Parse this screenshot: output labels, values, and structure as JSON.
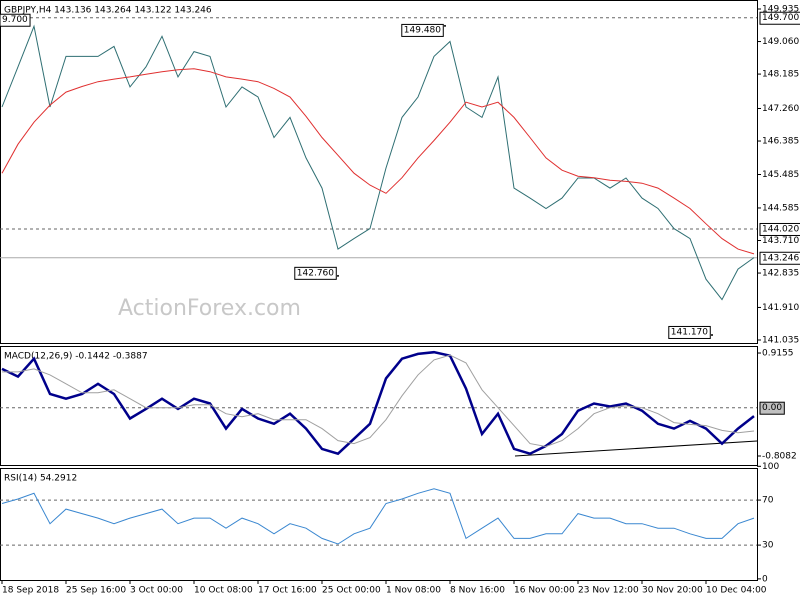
{
  "chart_data": [
    {
      "type": "line",
      "title": "GBPJPY,H4  143.136 143.264 143.122 143.246",
      "watermark": "ActionForex.com",
      "xlim": [
        -1,
        377.5
      ],
      "x": [
        0,
        8,
        16,
        24,
        32,
        40,
        48,
        56,
        64,
        72,
        80,
        88,
        96,
        104,
        112,
        120,
        128,
        136,
        144,
        152,
        160,
        168,
        176,
        184,
        192,
        200,
        208,
        216,
        224,
        232,
        240,
        248,
        256,
        264,
        272,
        280,
        288,
        296,
        304,
        312,
        320,
        328,
        336,
        344,
        352,
        360,
        368,
        376
      ],
      "ylim": [
        140.954,
        150.177
      ],
      "yticks": [
        149.935,
        {
          "value": 149.06,
          "label": "149.060"
        },
        148.185,
        {
          "value": 147.26,
          "label": "147.260"
        },
        146.385,
        145.485,
        144.585,
        {
          "value": 143.71,
          "label": "143.710"
        },
        142.835,
        {
          "value": 141.91,
          "label": "141.910"
        },
        141.035
      ],
      "levels": [
        {
          "value": 149.7,
          "label": "149.700",
          "left_label": "9.700"
        },
        {
          "value": 144.02,
          "label": "144.020"
        }
      ],
      "current": {
        "value": 143.246,
        "label": "143.246"
      },
      "annotations": [
        {
          "x": 221.5,
          "value": 149.48,
          "label": "149.480"
        },
        {
          "x": 168,
          "value": 142.76,
          "label": "142.760"
        },
        {
          "x": 355,
          "value": 141.17,
          "label": "141.170"
        }
      ],
      "series": [
        {
          "color": "#2f6f73",
          "values": [
            147.3,
            148.38,
            149.47,
            147.3,
            148.66,
            148.66,
            148.66,
            148.93,
            147.84,
            148.38,
            149.2,
            148.11,
            148.79,
            148.66,
            147.3,
            147.84,
            147.57,
            146.48,
            147.02,
            145.93,
            145.12,
            143.48,
            143.76,
            144.03,
            145.66,
            147.02,
            147.57,
            148.66,
            149.06,
            147.3,
            147.02,
            148.11,
            145.12,
            144.85,
            144.57,
            144.85,
            145.39,
            145.39,
            145.12,
            145.39,
            144.85,
            144.57,
            144.03,
            143.76,
            142.67,
            142.12,
            142.94,
            143.25
          ]
        },
        {
          "color": "#e03030",
          "values": [
            145.52,
            146.3,
            146.89,
            147.35,
            147.7,
            147.85,
            147.98,
            148.05,
            148.11,
            148.18,
            148.25,
            148.3,
            148.33,
            148.25,
            148.11,
            148.05,
            147.98,
            147.8,
            147.57,
            147.05,
            146.48,
            146.0,
            145.52,
            145.2,
            144.98,
            145.4,
            145.93,
            146.4,
            146.89,
            147.43,
            147.3,
            147.43,
            147.02,
            146.48,
            145.93,
            145.6,
            145.44,
            145.4,
            145.33,
            145.3,
            145.25,
            145.12,
            144.85,
            144.57,
            144.16,
            143.76,
            143.48,
            143.35
          ]
        }
      ]
    },
    {
      "type": "line",
      "title": "MACD(12,26,9) -0.1442 -0.3887",
      "xlim": [
        -1,
        377.5
      ],
      "x": [
        0,
        8,
        16,
        24,
        32,
        40,
        48,
        56,
        64,
        72,
        80,
        88,
        96,
        104,
        112,
        120,
        128,
        136,
        144,
        152,
        160,
        168,
        176,
        184,
        192,
        200,
        208,
        216,
        224,
        232,
        240,
        248,
        256,
        264,
        272,
        280,
        288,
        296,
        304,
        312,
        320,
        328,
        336,
        344,
        352,
        360,
        368,
        376
      ],
      "ylim": [
        -0.959,
        1.033
      ],
      "yticks": [
        0.9155,
        -0.8082
      ],
      "levels": [
        {
          "value": 0,
          "label": "0.00"
        }
      ],
      "series": [
        {
          "color": "#00008b",
          "values": [
            0.65,
            0.52,
            0.82,
            0.23,
            0.15,
            0.23,
            0.4,
            0.23,
            -0.18,
            -0.02,
            0.15,
            -0.02,
            0.15,
            0.07,
            -0.35,
            -0.02,
            -0.18,
            -0.27,
            -0.1,
            -0.35,
            -0.69,
            -0.77,
            -0.52,
            -0.27,
            0.49,
            0.82,
            0.9,
            0.93,
            0.87,
            0.32,
            -0.44,
            -0.1,
            -0.69,
            -0.77,
            -0.64,
            -0.44,
            -0.05,
            0.07,
            0.02,
            0.07,
            -0.05,
            -0.27,
            -0.35,
            -0.22,
            -0.35,
            -0.6,
            -0.35,
            -0.14
          ]
        },
        {
          "color": "#a0a0a0",
          "values": [
            0.6,
            0.6,
            0.65,
            0.55,
            0.4,
            0.25,
            0.25,
            0.3,
            0.15,
            0.0,
            0.0,
            0.0,
            0.05,
            0.05,
            -0.1,
            -0.15,
            -0.1,
            -0.2,
            -0.2,
            -0.2,
            -0.35,
            -0.55,
            -0.6,
            -0.5,
            -0.2,
            0.2,
            0.55,
            0.8,
            0.88,
            0.75,
            0.3,
            0.0,
            -0.3,
            -0.6,
            -0.65,
            -0.55,
            -0.35,
            -0.1,
            0.0,
            0.03,
            0.0,
            -0.1,
            -0.25,
            -0.28,
            -0.3,
            -0.38,
            -0.42,
            -0.39
          ]
        }
      ]
    },
    {
      "type": "line",
      "title": "RSI(14) 54.2912",
      "xlim": [
        -1,
        377.5
      ],
      "x": [
        0,
        8,
        16,
        24,
        32,
        40,
        48,
        56,
        64,
        72,
        80,
        88,
        96,
        104,
        112,
        120,
        128,
        136,
        144,
        152,
        160,
        168,
        176,
        184,
        192,
        200,
        208,
        216,
        224,
        232,
        240,
        248,
        256,
        264,
        272,
        280,
        288,
        296,
        304,
        312,
        320,
        328,
        336,
        344,
        352,
        360,
        368,
        376
      ],
      "ylim": [
        -1,
        98.5
      ],
      "yticks": [
        100,
        70,
        30,
        0
      ],
      "levels": [
        70,
        30
      ],
      "xticks": [
        {
          "value": 0,
          "label": "18 Sep 2018"
        },
        {
          "value": 32,
          "label": "25 Sep 16:00"
        },
        {
          "value": 64,
          "label": "3 Oct 00:00"
        },
        {
          "value": 96,
          "label": "10 Oct 08:00"
        },
        {
          "value": 128,
          "label": "17 Oct 16:00"
        },
        {
          "value": 160,
          "label": "25 Oct 00:00"
        },
        {
          "value": 192,
          "label": "1 Nov 08:00"
        },
        {
          "value": 224,
          "label": "8 Nov 16:00"
        },
        {
          "value": 256,
          "label": "16 Nov 00:00"
        },
        {
          "value": 288,
          "label": "23 Nov 12:00"
        },
        {
          "value": 320,
          "label": "30 Nov 20:00"
        },
        {
          "value": 352,
          "label": "10 Dec 04:00"
        }
      ],
      "series": [
        {
          "color": "#3a87d0",
          "values": [
            67,
            71,
            76,
            49,
            62,
            58,
            54,
            49,
            54,
            58,
            62,
            49,
            54,
            54,
            45,
            54,
            49,
            40,
            49,
            45,
            36,
            31,
            40,
            45,
            67,
            71,
            76,
            80,
            76,
            36,
            45,
            54,
            36,
            36,
            40,
            40,
            58,
            54,
            54,
            49,
            49,
            45,
            45,
            40,
            36,
            36,
            49,
            54
          ]
        }
      ]
    }
  ]
}
